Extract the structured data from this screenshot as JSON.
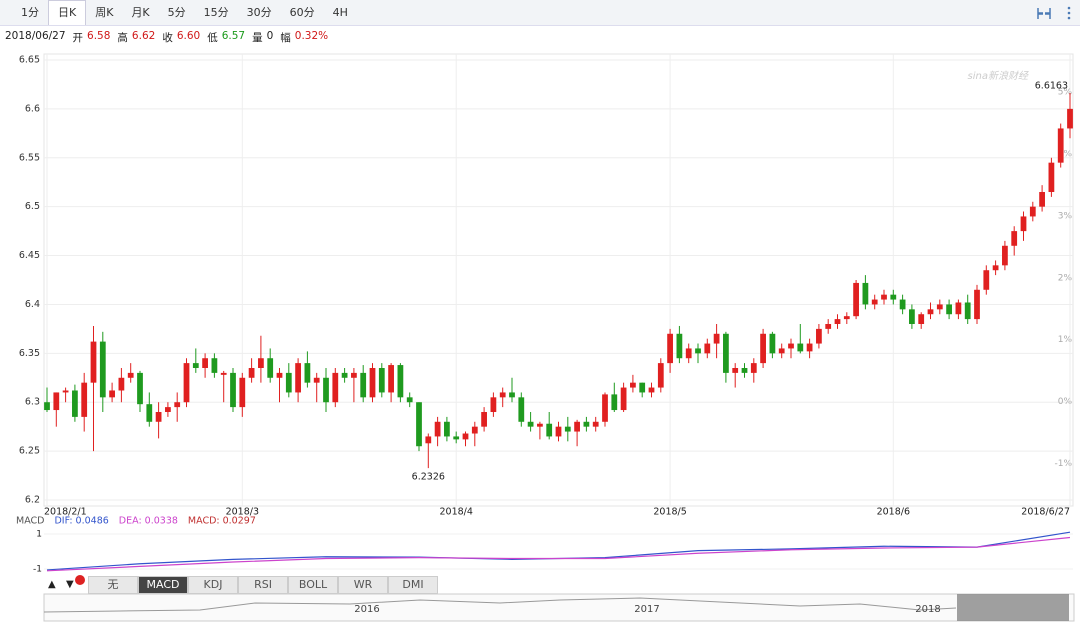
{
  "toolbar": {
    "tabs": [
      "1分",
      "日K",
      "周K",
      "月K",
      "5分",
      "15分",
      "30分",
      "60分",
      "4H"
    ],
    "active": 1
  },
  "header": {
    "date": "2018/06/27",
    "items": [
      {
        "label": "开",
        "value": "6.58",
        "color": "#d01818"
      },
      {
        "label": "高",
        "value": "6.62",
        "color": "#d01818"
      },
      {
        "label": "收",
        "value": "6.60",
        "color": "#d01818"
      },
      {
        "label": "低",
        "value": "6.57",
        "color": "#1a9a1a"
      },
      {
        "label": "量",
        "value": "0",
        "color": "#222222"
      },
      {
        "label": "幅",
        "value": "0.32%",
        "color": "#d01818"
      }
    ]
  },
  "chart_data": {
    "type": "candlestick",
    "watermark": "sina新浪财经",
    "up_color": "#e02020",
    "down_color": "#1f9a1f",
    "categories": [
      "2018/2/1",
      null,
      null,
      null,
      null,
      null,
      null,
      null,
      null,
      null,
      null,
      null,
      null,
      null,
      null,
      null,
      null,
      null,
      null,
      null,
      null,
      "2018/3",
      null,
      null,
      null,
      null,
      null,
      null,
      null,
      null,
      null,
      null,
      null,
      null,
      null,
      null,
      null,
      null,
      null,
      null,
      null,
      null,
      null,
      null,
      "2018/4",
      null,
      null,
      null,
      null,
      null,
      null,
      null,
      null,
      null,
      null,
      null,
      null,
      null,
      null,
      null,
      null,
      null,
      null,
      null,
      null,
      null,
      null,
      "2018/5",
      null,
      null,
      null,
      null,
      null,
      null,
      null,
      null,
      null,
      null,
      null,
      null,
      null,
      null,
      null,
      null,
      null,
      null,
      null,
      null,
      null,
      null,
      null,
      "2018/6",
      null,
      null,
      null,
      null,
      null,
      null,
      null,
      null,
      null,
      null,
      null,
      null,
      null,
      null,
      null,
      null,
      null,
      null,
      "2018/6/27"
    ],
    "candles": [
      [
        6.3,
        6.315,
        6.29,
        6.292
      ],
      [
        6.292,
        6.31,
        6.275,
        6.31
      ],
      [
        6.31,
        6.315,
        6.3,
        6.312
      ],
      [
        6.312,
        6.318,
        6.28,
        6.285
      ],
      [
        6.285,
        6.33,
        6.27,
        6.32
      ],
      [
        6.32,
        6.378,
        6.25,
        6.362
      ],
      [
        6.362,
        6.372,
        6.29,
        6.305
      ],
      [
        6.305,
        6.32,
        6.3,
        6.312
      ],
      [
        6.312,
        6.335,
        6.3,
        6.325
      ],
      [
        6.325,
        6.34,
        6.32,
        6.33
      ],
      [
        6.33,
        6.332,
        6.29,
        6.298
      ],
      [
        6.298,
        6.31,
        6.275,
        6.28
      ],
      [
        6.28,
        6.3,
        6.263,
        6.29
      ],
      [
        6.29,
        6.3,
        6.285,
        6.295
      ],
      [
        6.295,
        6.31,
        6.28,
        6.3
      ],
      [
        6.3,
        6.345,
        6.295,
        6.34
      ],
      [
        6.34,
        6.355,
        6.33,
        6.335
      ],
      [
        6.335,
        6.35,
        6.325,
        6.345
      ],
      [
        6.345,
        6.35,
        6.325,
        6.33
      ],
      [
        6.328,
        6.332,
        6.3,
        6.33
      ],
      [
        6.33,
        6.335,
        6.29,
        6.295
      ],
      [
        6.295,
        6.33,
        6.285,
        6.325
      ],
      [
        6.325,
        6.345,
        6.32,
        6.335
      ],
      [
        6.335,
        6.368,
        6.32,
        6.345
      ],
      [
        6.345,
        6.355,
        6.32,
        6.325
      ],
      [
        6.325,
        6.335,
        6.3,
        6.33
      ],
      [
        6.33,
        6.34,
        6.305,
        6.31
      ],
      [
        6.31,
        6.345,
        6.3,
        6.34
      ],
      [
        6.34,
        6.352,
        6.315,
        6.32
      ],
      [
        6.32,
        6.33,
        6.3,
        6.325
      ],
      [
        6.325,
        6.335,
        6.29,
        6.3
      ],
      [
        6.3,
        6.335,
        6.295,
        6.33
      ],
      [
        6.33,
        6.335,
        6.32,
        6.325
      ],
      [
        6.325,
        6.335,
        6.3,
        6.33
      ],
      [
        6.33,
        6.338,
        6.3,
        6.305
      ],
      [
        6.305,
        6.34,
        6.3,
        6.335
      ],
      [
        6.335,
        6.34,
        6.305,
        6.31
      ],
      [
        6.31,
        6.34,
        6.3,
        6.338
      ],
      [
        6.338,
        6.34,
        6.3,
        6.305
      ],
      [
        6.305,
        6.31,
        6.295,
        6.3
      ],
      [
        6.3,
        6.3,
        6.25,
        6.255
      ],
      [
        6.258,
        6.268,
        6.2326,
        6.265
      ],
      [
        6.265,
        6.285,
        6.255,
        6.28
      ],
      [
        6.28,
        6.285,
        6.26,
        6.265
      ],
      [
        6.265,
        6.27,
        6.258,
        6.262
      ],
      [
        6.262,
        6.27,
        6.255,
        6.268
      ],
      [
        6.268,
        6.28,
        6.255,
        6.275
      ],
      [
        6.275,
        6.295,
        6.27,
        6.29
      ],
      [
        6.29,
        6.31,
        6.285,
        6.305
      ],
      [
        6.305,
        6.315,
        6.295,
        6.31
      ],
      [
        6.31,
        6.325,
        6.3,
        6.305
      ],
      [
        6.305,
        6.31,
        6.275,
        6.28
      ],
      [
        6.28,
        6.29,
        6.27,
        6.275
      ],
      [
        6.275,
        6.28,
        6.262,
        6.278
      ],
      [
        6.278,
        6.29,
        6.262,
        6.265
      ],
      [
        6.265,
        6.28,
        6.26,
        6.275
      ],
      [
        6.275,
        6.285,
        6.26,
        6.27
      ],
      [
        6.27,
        6.282,
        6.255,
        6.28
      ],
      [
        6.28,
        6.285,
        6.27,
        6.275
      ],
      [
        6.275,
        6.285,
        6.27,
        6.28
      ],
      [
        6.28,
        6.31,
        6.275,
        6.308
      ],
      [
        6.308,
        6.32,
        6.29,
        6.292
      ],
      [
        6.292,
        6.32,
        6.29,
        6.315
      ],
      [
        6.315,
        6.328,
        6.31,
        6.32
      ],
      [
        6.32,
        6.32,
        6.305,
        6.31
      ],
      [
        6.31,
        6.32,
        6.305,
        6.315
      ],
      [
        6.315,
        6.345,
        6.31,
        6.34
      ],
      [
        6.34,
        6.375,
        6.33,
        6.37
      ],
      [
        6.37,
        6.378,
        6.34,
        6.345
      ],
      [
        6.345,
        6.36,
        6.34,
        6.355
      ],
      [
        6.355,
        6.36,
        6.34,
        6.35
      ],
      [
        6.35,
        6.365,
        6.345,
        6.36
      ],
      [
        6.36,
        6.38,
        6.345,
        6.37
      ],
      [
        6.37,
        6.372,
        6.32,
        6.33
      ],
      [
        6.33,
        6.34,
        6.315,
        6.335
      ],
      [
        6.335,
        6.34,
        6.325,
        6.33
      ],
      [
        6.33,
        6.345,
        6.32,
        6.34
      ],
      [
        6.34,
        6.375,
        6.335,
        6.37
      ],
      [
        6.37,
        6.372,
        6.345,
        6.35
      ],
      [
        6.35,
        6.36,
        6.345,
        6.355
      ],
      [
        6.355,
        6.365,
        6.345,
        6.36
      ],
      [
        6.36,
        6.38,
        6.35,
        6.352
      ],
      [
        6.352,
        6.365,
        6.345,
        6.36
      ],
      [
        6.36,
        6.38,
        6.355,
        6.375
      ],
      [
        6.375,
        6.385,
        6.37,
        6.38
      ],
      [
        6.38,
        6.39,
        6.375,
        6.385
      ],
      [
        6.385,
        6.392,
        6.38,
        6.388
      ],
      [
        6.388,
        6.425,
        6.385,
        6.422
      ],
      [
        6.422,
        6.43,
        6.395,
        6.4
      ],
      [
        6.4,
        6.41,
        6.395,
        6.405
      ],
      [
        6.405,
        6.415,
        6.4,
        6.41
      ],
      [
        6.41,
        6.415,
        6.4,
        6.405
      ],
      [
        6.405,
        6.41,
        6.39,
        6.395
      ],
      [
        6.395,
        6.4,
        6.375,
        6.38
      ],
      [
        6.38,
        6.392,
        6.375,
        6.39
      ],
      [
        6.39,
        6.402,
        6.385,
        6.395
      ],
      [
        6.395,
        6.405,
        6.39,
        6.4
      ],
      [
        6.4,
        6.405,
        6.385,
        6.39
      ],
      [
        6.39,
        6.405,
        6.385,
        6.402
      ],
      [
        6.402,
        6.41,
        6.38,
        6.385
      ],
      [
        6.385,
        6.42,
        6.38,
        6.415
      ],
      [
        6.415,
        6.44,
        6.41,
        6.435
      ],
      [
        6.435,
        6.445,
        6.43,
        6.44
      ],
      [
        6.44,
        6.465,
        6.435,
        6.46
      ],
      [
        6.46,
        6.48,
        6.45,
        6.475
      ],
      [
        6.475,
        6.495,
        6.465,
        6.49
      ],
      [
        6.49,
        6.505,
        6.485,
        6.5
      ],
      [
        6.5,
        6.522,
        6.495,
        6.515
      ],
      [
        6.515,
        6.55,
        6.51,
        6.545
      ],
      [
        6.545,
        6.585,
        6.54,
        6.58
      ],
      [
        6.58,
        6.6163,
        6.57,
        6.6
      ]
    ],
    "ylim": [
      6.2,
      6.65
    ],
    "yticks": [
      6.2,
      6.25,
      6.3,
      6.35,
      6.4,
      6.45,
      6.5,
      6.55,
      6.6,
      6.65
    ],
    "y2lim": [
      -1.59,
      5.52
    ],
    "y2ticks": [
      {
        "value": -1,
        "label": "-1%"
      },
      {
        "value": 0,
        "label": "0%"
      },
      {
        "value": 1,
        "label": "1%"
      },
      {
        "value": 2,
        "label": "2%"
      },
      {
        "value": 3,
        "label": "3%"
      },
      {
        "value": 4,
        "label": "4%"
      },
      {
        "value": 5,
        "label": "5%"
      }
    ],
    "grid": true,
    "macd": {
      "legend": [
        {
          "text": "MACD",
          "color": "#555555"
        },
        {
          "text": "DIF: 0.0486",
          "color": "#3355cc"
        },
        {
          "text": "DEA: 0.0338",
          "color": "#cc44cc"
        },
        {
          "text": "MACD: 0.0297",
          "color": "#c03030"
        }
      ],
      "ylim": [
        -1.34,
        1.34
      ],
      "yticks": [
        -1,
        1
      ],
      "x": [
        0,
        10,
        20,
        30,
        40,
        50,
        60,
        70,
        80,
        90,
        100,
        110
      ],
      "series": [
        {
          "name": "DIF",
          "color": "#3355cc",
          "values": [
            -1.05,
            -0.7,
            -0.45,
            -0.3,
            -0.32,
            -0.45,
            -0.35,
            0.05,
            0.15,
            0.3,
            0.25,
            1.1
          ]
        },
        {
          "name": "DEA",
          "color": "#cc44cc",
          "values": [
            -1.1,
            -0.85,
            -0.6,
            -0.4,
            -0.35,
            -0.4,
            -0.4,
            -0.1,
            0.1,
            0.2,
            0.25,
            0.8
          ]
        }
      ]
    }
  },
  "indicator_tabs": {
    "tabs": [
      "无",
      "MACD",
      "KDJ",
      "RSI",
      "BOLL",
      "WR",
      "DMI"
    ],
    "active": 1
  },
  "navigator": {
    "years": [
      "2016",
      "2017",
      "2018"
    ]
  }
}
